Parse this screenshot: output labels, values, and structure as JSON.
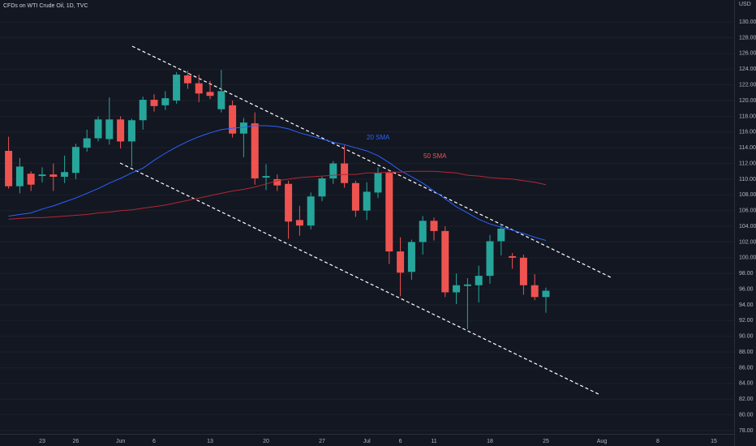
{
  "chart_data": {
    "type": "candlestick",
    "title": "CFDs on WTI Crude Oil, 1D, TVC",
    "currency": "USD",
    "categories": [
      null,
      null,
      null,
      "23",
      null,
      null,
      "26",
      null,
      null,
      null,
      "Jun",
      null,
      null,
      "6",
      null,
      null,
      null,
      null,
      "13",
      null,
      null,
      null,
      null,
      "20",
      null,
      null,
      null,
      null,
      "27",
      null,
      null,
      null,
      "Jul",
      null,
      null,
      "6",
      null,
      null,
      "11",
      null,
      null,
      null,
      null,
      "18",
      null,
      null,
      null,
      null,
      "25",
      null,
      null,
      null,
      null,
      "Aug",
      null,
      null,
      null,
      null,
      "8",
      null,
      null,
      null,
      null,
      "15",
      null
    ],
    "open": [
      113.6,
      109.1,
      110.7,
      110.4,
      110.6,
      110.3,
      110.8,
      114.0,
      115.2,
      115.1,
      117.6,
      114.8,
      117.5,
      120.1,
      119.4,
      120.0,
      123.2,
      122.2,
      121.1,
      118.9,
      119.4,
      115.8,
      117.1,
      110.2,
      110.0,
      109.4,
      104.8,
      104.1,
      107.8,
      110.1,
      112.0,
      109.5,
      106.0,
      108.3,
      110.8,
      100.8,
      98.2,
      102.0,
      104.7,
      103.4,
      95.6,
      96.4,
      96.5,
      97.7,
      102.1,
      100.2,
      100.0,
      96.5,
      95.0,
      null,
      null,
      null,
      null,
      null,
      null,
      null,
      null,
      null,
      null,
      null,
      null,
      null,
      null,
      null,
      null
    ],
    "high": [
      115.4,
      112.7,
      111.0,
      111.5,
      112.0,
      113.0,
      114.5,
      116.3,
      118.0,
      120.4,
      118.0,
      117.7,
      120.5,
      120.8,
      121.2,
      123.6,
      123.8,
      123.3,
      122.5,
      123.9,
      120.0,
      117.8,
      118.5,
      111.9,
      110.6,
      109.8,
      106.6,
      108.3,
      110.3,
      112.3,
      114.3,
      109.8,
      109.6,
      111.5,
      111.2,
      102.6,
      102.3,
      105.3,
      105.1,
      104.0,
      98.0,
      97.4,
      99.0,
      102.9,
      104.3,
      100.6,
      100.4,
      97.9,
      96.2,
      null,
      null,
      null,
      null,
      null,
      null,
      null,
      null,
      null,
      null,
      null,
      null,
      null,
      null,
      null,
      null
    ],
    "low": [
      108.8,
      108.2,
      108.5,
      109.6,
      108.5,
      109.5,
      110.0,
      113.5,
      114.8,
      114.4,
      113.9,
      111.6,
      116.3,
      118.6,
      118.8,
      119.6,
      121.5,
      119.8,
      120.2,
      118.5,
      115.3,
      112.8,
      109.3,
      108.6,
      108.5,
      102.4,
      102.8,
      103.6,
      107.2,
      109.4,
      108.9,
      105.2,
      104.8,
      107.6,
      99.2,
      95.1,
      97.2,
      100.4,
      102.2,
      95.0,
      94.1,
      90.9,
      94.3,
      96.7,
      100.3,
      98.6,
      95.3,
      94.6,
      93.0,
      null,
      null,
      null,
      null,
      null,
      null,
      null,
      null,
      null,
      null,
      null,
      null,
      null,
      null,
      null,
      null
    ],
    "close": [
      109.1,
      111.6,
      109.3,
      110.6,
      110.3,
      110.9,
      114.1,
      115.2,
      117.6,
      117.6,
      114.8,
      117.5,
      120.1,
      119.3,
      120.3,
      123.3,
      122.2,
      120.9,
      120.6,
      121.2,
      115.8,
      117.2,
      110.1,
      110.4,
      109.2,
      104.6,
      104.1,
      107.8,
      110.1,
      112.0,
      109.5,
      106.0,
      108.4,
      110.8,
      100.8,
      98.1,
      102.0,
      104.7,
      103.4,
      95.6,
      96.5,
      96.6,
      97.7,
      102.1,
      103.7,
      100.0,
      96.5,
      95.0,
      95.8,
      null,
      null,
      null,
      null,
      null,
      null,
      null,
      null,
      null,
      null,
      null,
      null,
      null,
      null,
      null,
      null
    ],
    "up_color": "#26a69a",
    "down_color": "#ef5350",
    "sma": [
      {
        "name": "20 SMA",
        "color": "#2962ff",
        "values": [
          105.3,
          105.5,
          105.7,
          106.2,
          106.6,
          107.1,
          107.6,
          108.2,
          108.8,
          109.5,
          110.1,
          110.8,
          111.4,
          112.4,
          113.3,
          114.1,
          114.8,
          115.4,
          115.9,
          116.3,
          116.5,
          116.6,
          116.8,
          116.8,
          116.7,
          116.4,
          115.9,
          115.5,
          115.1,
          114.7,
          114.4,
          114.0,
          113.6,
          113.0,
          112.1,
          111.1,
          110.3,
          109.5,
          108.5,
          107.5,
          106.5,
          105.7,
          104.9,
          104.3,
          103.9,
          103.5,
          103.1,
          102.6,
          102.2,
          null,
          null,
          null,
          null,
          null,
          null,
          null,
          null,
          null,
          null,
          null,
          null,
          null,
          null,
          null,
          null
        ]
      },
      {
        "name": "50 SMA",
        "color": "#b22833",
        "values": [
          104.9,
          105.0,
          105.1,
          105.1,
          105.2,
          105.3,
          105.4,
          105.5,
          105.7,
          105.8,
          106.0,
          106.1,
          106.3,
          106.5,
          106.7,
          107.0,
          107.3,
          107.6,
          107.9,
          108.2,
          108.5,
          108.7,
          109.0,
          109.4,
          109.8,
          110.0,
          110.2,
          110.3,
          110.4,
          110.5,
          110.6,
          110.6,
          110.8,
          110.8,
          110.9,
          110.9,
          111.0,
          111.0,
          111.0,
          110.9,
          110.8,
          110.5,
          110.4,
          110.2,
          110.1,
          110.0,
          109.8,
          109.6,
          109.3,
          null,
          null,
          null,
          null,
          null,
          null,
          null,
          null,
          null,
          null,
          null,
          null,
          null,
          null,
          null,
          null
        ]
      }
    ],
    "ylim": [
      77.9,
      132.8
    ],
    "yticks": [
      {
        "value": 130,
        "label": "130.00"
      },
      {
        "value": 128,
        "label": "128.00"
      },
      {
        "value": 126,
        "label": "126.00"
      },
      {
        "value": 124,
        "label": "124.00"
      },
      {
        "value": 122,
        "label": "122.00"
      },
      {
        "value": 120,
        "label": "120.00"
      },
      {
        "value": 118,
        "label": "118.00"
      },
      {
        "value": 116,
        "label": "116.00"
      },
      {
        "value": 114,
        "label": "114.00"
      },
      {
        "value": 112,
        "label": "112.00"
      },
      {
        "value": 110,
        "label": "110.00"
      },
      {
        "value": 108,
        "label": "108.00"
      },
      {
        "value": 106,
        "label": "106.00"
      },
      {
        "value": 104,
        "label": "104.00"
      },
      {
        "value": 102,
        "label": "102.00"
      },
      {
        "value": 100,
        "label": "100.00"
      },
      {
        "value": 98,
        "label": "98.00"
      },
      {
        "value": 96,
        "label": "96.00"
      },
      {
        "value": 94,
        "label": "94.00"
      },
      {
        "value": 92,
        "label": "92.00"
      },
      {
        "value": 90,
        "label": "90.00"
      },
      {
        "value": 88,
        "label": "88.00"
      },
      {
        "value": 86,
        "label": "86.00"
      },
      {
        "value": 84,
        "label": "84.00"
      },
      {
        "value": 82,
        "label": "82.00"
      },
      {
        "value": 80,
        "label": "80.00"
      },
      {
        "value": 78,
        "label": "78.00"
      }
    ],
    "grid": true
  }
}
